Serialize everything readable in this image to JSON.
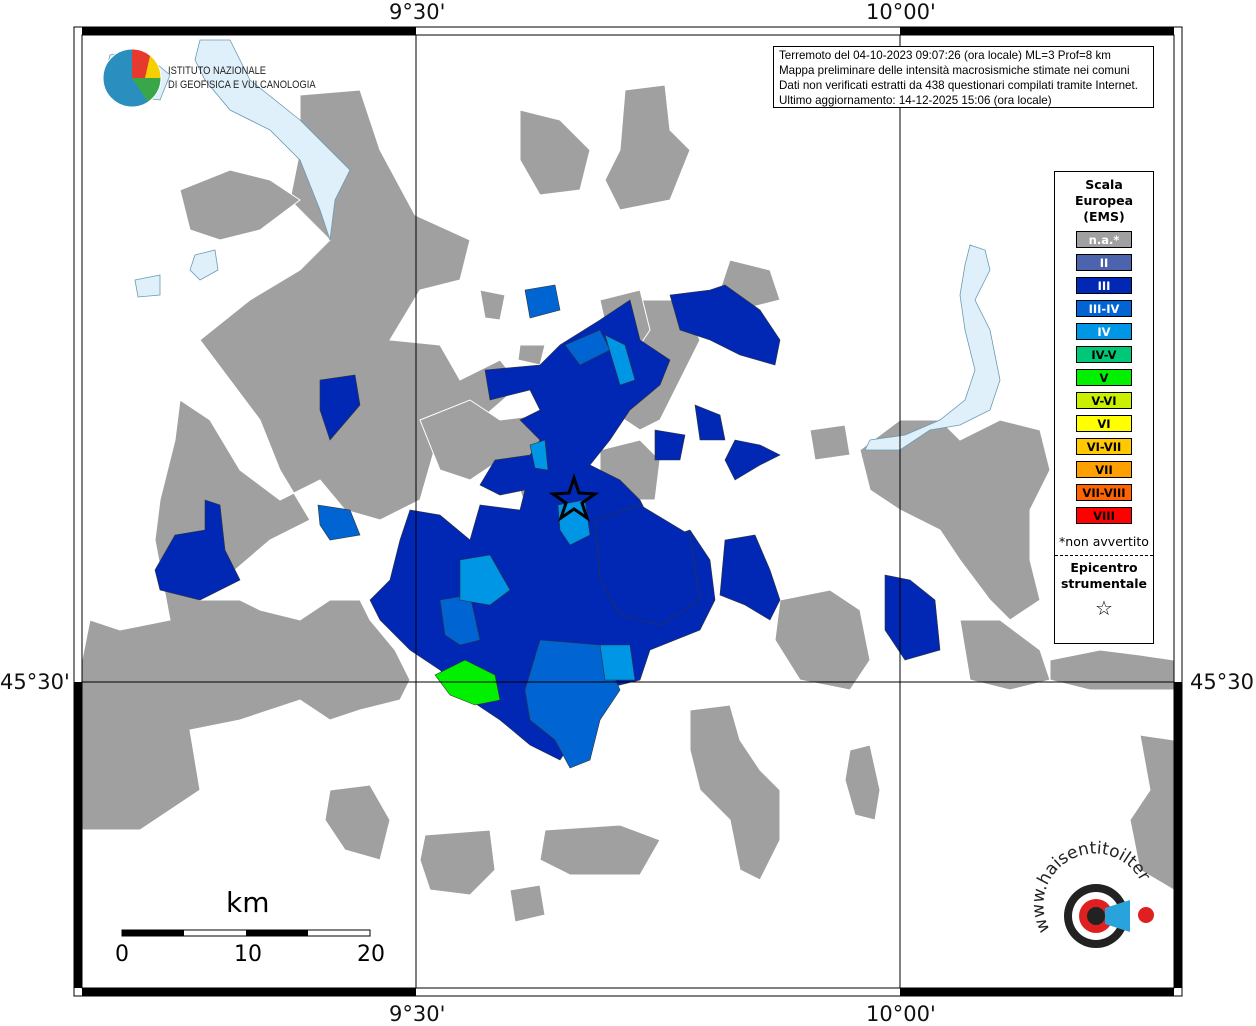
{
  "header": {
    "lines": [
      "Terremoto del 04-10-2023 09:07:26 (ora locale) ML=3 Prof=8 km",
      "Mappa preliminare delle intensità macrosismiche stimate nei comuni",
      "Dati non verificati estratti da 438 questionari compilati tramite Internet.",
      "Ultimo aggiornamento: 14-12-2025 15:06 (ora locale)"
    ]
  },
  "coordinates": {
    "lon_labels": [
      "9°30'",
      "10°00'"
    ],
    "lat_labels": [
      "45°30'"
    ]
  },
  "legend": {
    "title": [
      "Scala",
      "Europea",
      "(EMS)"
    ],
    "items": [
      {
        "label": "n.a.*",
        "color": "#a0a0a0",
        "text_color": "#ffffff"
      },
      {
        "label": "II",
        "color": "#4b64ad",
        "text_color": "#ffffff"
      },
      {
        "label": "III",
        "color": "#0028b4",
        "text_color": "#ffffff"
      },
      {
        "label": "III-IV",
        "color": "#0064d2",
        "text_color": "#ffffff"
      },
      {
        "label": "IV",
        "color": "#0096e6",
        "text_color": "#ffffff"
      },
      {
        "label": "IV-V",
        "color": "#00c878",
        "text_color": "#000000"
      },
      {
        "label": "V",
        "color": "#00f000",
        "text_color": "#000000"
      },
      {
        "label": "V-VI",
        "color": "#c8f000",
        "text_color": "#000000"
      },
      {
        "label": "VI",
        "color": "#ffff00",
        "text_color": "#000000"
      },
      {
        "label": "VI-VII",
        "color": "#ffc800",
        "text_color": "#000000"
      },
      {
        "label": "VII",
        "color": "#ffa000",
        "text_color": "#000000"
      },
      {
        "label": "VII-VIII",
        "color": "#ff6400",
        "text_color": "#000000"
      },
      {
        "label": "VIII",
        "color": "#ff0000",
        "text_color": "#000000"
      }
    ],
    "not_felt_note": "*non avvertito",
    "epicenter_label": [
      "Epicentro",
      "strumentale"
    ],
    "epicenter_icon": "star-outline-icon"
  },
  "logos": {
    "ingv": [
      "ISTITUTO NAZIONALE",
      "DI GEOFISICA E VULCANOLOGIA"
    ],
    "haisentito": "www.haisentitoilterremoto.it"
  },
  "scale_bar": {
    "unit": "km",
    "ticks": [
      "0",
      "10",
      "20"
    ]
  },
  "colors": {
    "not_available": "#a0a0a0",
    "lake": "#dff0fa",
    "intensity_II": "#4b64ad",
    "intensity_III": "#0028b4",
    "intensity_III_IV": "#0064d2",
    "intensity_IV": "#0096e6",
    "intensity_V": "#00f000"
  }
}
